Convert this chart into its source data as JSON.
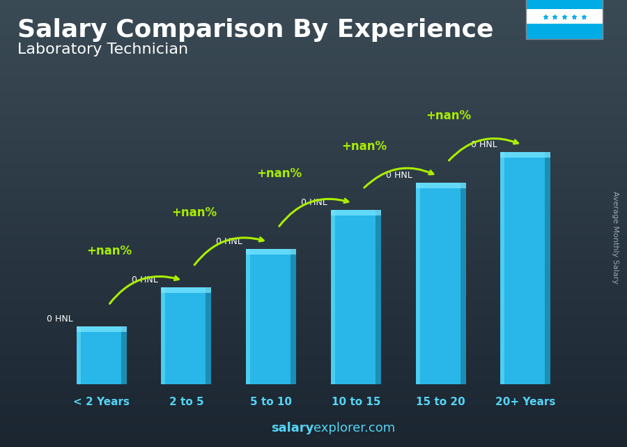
{
  "title": "Salary Comparison By Experience",
  "subtitle": "Laboratory Technician",
  "categories": [
    "< 2 Years",
    "2 to 5",
    "5 to 10",
    "10 to 15",
    "15 to 20",
    "20+ Years"
  ],
  "values": [
    1.5,
    2.5,
    3.5,
    4.5,
    5.2,
    6.0
  ],
  "bar_color_main": "#29b6e8",
  "bar_color_light": "#55d4f5",
  "bar_color_dark": "#1a8ab0",
  "bar_color_top": "#7de8ff",
  "bg_color_top": "#3a4a55",
  "bg_color_bottom": "#1a2530",
  "title_color": "#ffffff",
  "subtitle_color": "#ffffff",
  "cat_label_color": "#55d4f5",
  "salary_label": "0 HNL",
  "salary_color": "#ffffff",
  "pct_label": "+nan%",
  "pct_color": "#aaee00",
  "arrow_color": "#aaee00",
  "ylabel_text": "Average Monthly Salary",
  "footer_salary": "salary",
  "footer_explorer": "explorer.com",
  "flag_blue": "#00ace6",
  "flag_white": "#ffffff",
  "ylim": [
    0,
    7.2
  ]
}
